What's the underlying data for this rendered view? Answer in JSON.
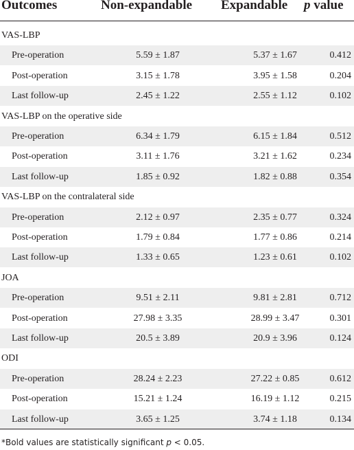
{
  "table": {
    "headers": [
      "Outcomes",
      "Non-expandable",
      "Expandable",
      "p value"
    ],
    "groups": [
      {
        "label": "VAS-LBP",
        "rows": [
          {
            "label": "Pre-operation",
            "non_expandable": "5.59 ± 1.87",
            "expandable": "5.37 ± 1.67",
            "p": "0.412"
          },
          {
            "label": "Post-operation",
            "non_expandable": "3.15 ± 1.78",
            "expandable": "3.95 ± 1.58",
            "p": "0.204"
          },
          {
            "label": "Last follow-up",
            "non_expandable": "2.45 ± 1.22",
            "expandable": "2.55 ± 1.12",
            "p": "0.102"
          }
        ]
      },
      {
        "label": "VAS-LBP on the operative side",
        "rows": [
          {
            "label": "Pre-operation",
            "non_expandable": "6.34 ± 1.79",
            "expandable": "6.15 ± 1.84",
            "p": "0.512"
          },
          {
            "label": "Post-operation",
            "non_expandable": "3.11 ± 1.76",
            "expandable": "3.21 ± 1.62",
            "p": "0.234"
          },
          {
            "label": "Last follow-up",
            "non_expandable": "1.85 ± 0.92",
            "expandable": "1.82 ± 0.88",
            "p": "0.354"
          }
        ]
      },
      {
        "label": "VAS-LBP on the contralateral side",
        "rows": [
          {
            "label": "Pre-operation",
            "non_expandable": "2.12 ± 0.97",
            "expandable": "2.35 ± 0.77",
            "p": "0.324"
          },
          {
            "label": "Post-operation",
            "non_expandable": "1.79 ± 0.84",
            "expandable": "1.77 ± 0.86",
            "p": "0.214"
          },
          {
            "label": "Last follow-up",
            "non_expandable": "1.33 ± 0.65",
            "expandable": "1.23 ± 0.61",
            "p": "0.102"
          }
        ]
      },
      {
        "label": "JOA",
        "rows": [
          {
            "label": "Pre-operation",
            "non_expandable": "9.51 ± 2.11",
            "expandable": "9.81 ± 2.81",
            "p": "0.712"
          },
          {
            "label": "Post-operation",
            "non_expandable": "27.98 ± 3.35",
            "expandable": "28.99 ± 3.47",
            "p": "0.301"
          },
          {
            "label": "Last follow-up",
            "non_expandable": "20.5 ± 3.89",
            "expandable": "20.9 ± 3.96",
            "p": "0.124"
          }
        ]
      },
      {
        "label": "ODI",
        "rows": [
          {
            "label": "Pre-operation",
            "non_expandable": "28.24 ± 2.23",
            "expandable": "27.22 ± 0.85",
            "p": "0.612"
          },
          {
            "label": "Post-operation",
            "non_expandable": "15.21 ± 1.24",
            "expandable": "16.19 ± 1.12",
            "p": "0.215"
          },
          {
            "label": "Last follow-up",
            "non_expandable": "3.65 ± 1.25",
            "expandable": "3.74 ± 1.18",
            "p": "0.134"
          }
        ]
      }
    ]
  },
  "footnote": {
    "prefix": "*Bold values are statistically significant ",
    "italic": "p",
    "suffix": " < 0.05."
  },
  "colors": {
    "text": "#231f20",
    "shaded_row": "#eeeeee",
    "background": "#ffffff"
  }
}
